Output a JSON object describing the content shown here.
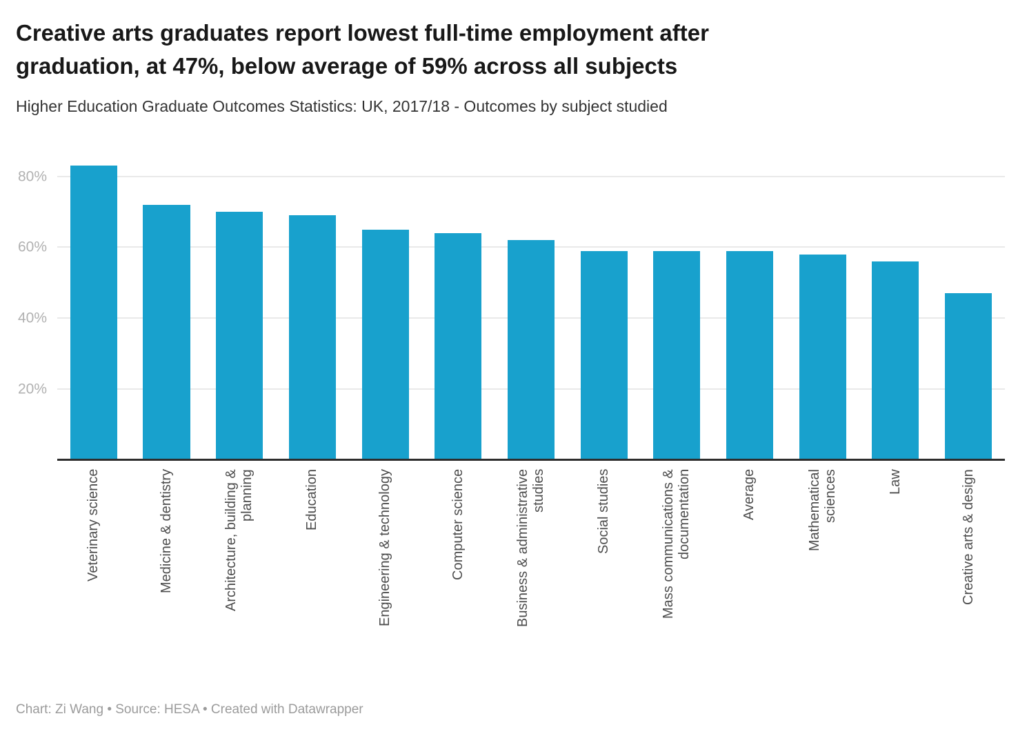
{
  "chart_data": {
    "type": "bar",
    "title": "Creative arts graduates report lowest full-time employment after\ngraduation, at 47%, below average of 59% across all subjects",
    "subtitle": "Higher Education Graduate Outcomes Statistics: UK, 2017/18 - Outcomes by subject studied",
    "categories": [
      "Veterinary science",
      "Medicine & dentistry",
      "Architecture, building &\nplanning",
      "Education",
      "Engineering & technology",
      "Computer science",
      "Business & administrative\nstudies",
      "Social studies",
      "Mass communications &\ndocumentation",
      "Average",
      "Mathematical\nsciences",
      "Law",
      "Creative arts & design"
    ],
    "values": [
      83,
      72,
      70,
      69,
      65,
      64,
      62,
      59,
      59,
      59,
      58,
      56,
      47
    ],
    "unit": "%",
    "xlabel": "",
    "ylabel": "",
    "ylim": [
      0,
      87.5
    ],
    "y_tick_values": [
      20,
      40,
      60,
      80
    ],
    "y_ticks": [
      "20%",
      "40%",
      "60%",
      "80%"
    ],
    "grid": "horizontal",
    "legend": "none"
  },
  "colors": {
    "bar": "#18a1cd"
  },
  "footer": {
    "credit": "Chart: Zi Wang • Source: HESA • Created with Datawrapper"
  }
}
